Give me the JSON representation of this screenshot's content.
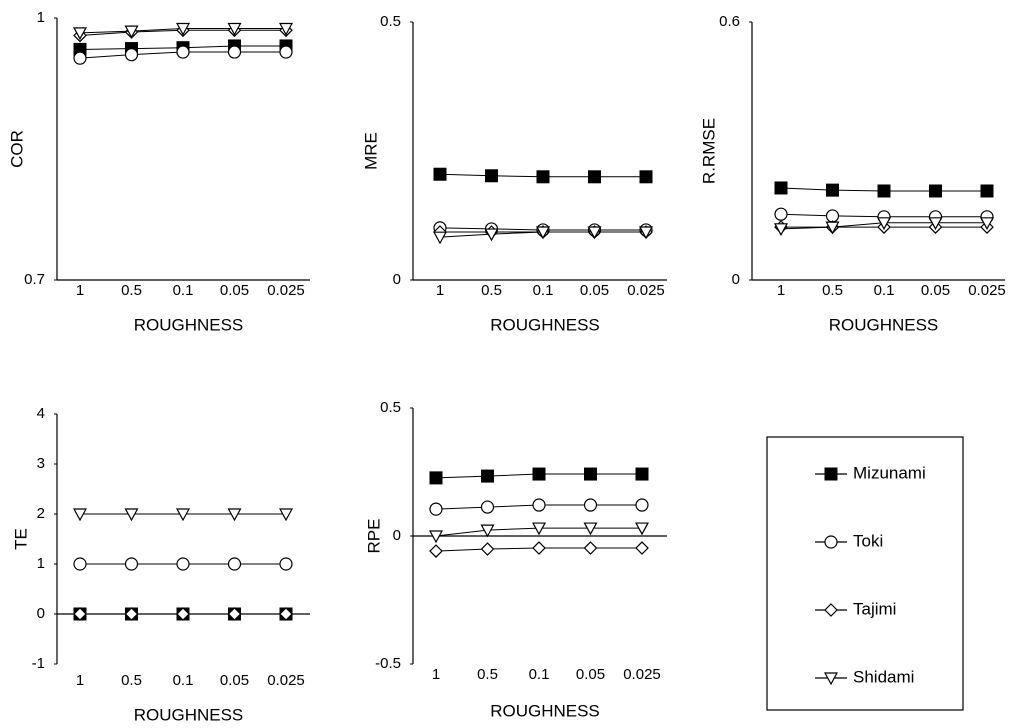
{
  "chart_data": [
    {
      "type": "line",
      "ylabel": "COR",
      "xlabel": "ROUGHNESS",
      "categories": [
        "1",
        "0.5",
        "0.1",
        "0.05",
        "0.025"
      ],
      "ylim": [
        0.7,
        1
      ],
      "yticks": [
        0.7,
        1
      ],
      "series": [
        {
          "name": "Mizunami",
          "color": "#000000",
          "marker": "square-filled",
          "values": [
            0.964,
            0.965,
            0.966,
            0.968,
            0.968
          ]
        },
        {
          "name": "Toki",
          "color": "#000000",
          "marker": "circle",
          "values": [
            0.954,
            0.958,
            0.961,
            0.961,
            0.961
          ]
        },
        {
          "name": "Tajimi",
          "color": "#000000",
          "marker": "diamond",
          "values": [
            0.98,
            0.984,
            0.986,
            0.986,
            0.986
          ]
        },
        {
          "name": "Shidami",
          "color": "#000000",
          "marker": "triangle-down",
          "values": [
            0.983,
            0.985,
            0.988,
            0.988,
            0.988
          ]
        }
      ]
    },
    {
      "type": "line",
      "ylabel": "MRE",
      "xlabel": "ROUGHNESS",
      "categories": [
        "1",
        "0.5",
        "0.1",
        "0.05",
        "0.025"
      ],
      "ylim": [
        0,
        0.5
      ],
      "yticks": [
        0,
        0.5
      ],
      "series": [
        {
          "color": "#000000",
          "marker": "square-filled",
          "values": [
            0.205,
            0.202,
            0.2,
            0.2,
            0.2
          ]
        },
        {
          "color": "#000000",
          "marker": "circle",
          "values": [
            0.101,
            0.099,
            0.097,
            0.097,
            0.097
          ]
        },
        {
          "color": "#000000",
          "marker": "diamond",
          "values": [
            0.093,
            0.093,
            0.093,
            0.093,
            0.093
          ]
        },
        {
          "color": "#000000",
          "marker": "triangle-down",
          "values": [
            0.083,
            0.089,
            0.093,
            0.093,
            0.093
          ]
        }
      ]
    },
    {
      "type": "line",
      "ylabel": "R.RMSE",
      "xlabel": "ROUGHNESS",
      "categories": [
        "1",
        "0.5",
        "0.1",
        "0.05",
        "0.025"
      ],
      "ylim": [
        0,
        0.6
      ],
      "yticks": [
        0,
        0.6
      ],
      "series": [
        {
          "color": "#000000",
          "marker": "square-filled",
          "values": [
            0.214,
            0.209,
            0.207,
            0.207,
            0.207
          ]
        },
        {
          "color": "#000000",
          "marker": "circle",
          "values": [
            0.153,
            0.149,
            0.147,
            0.147,
            0.147
          ]
        },
        {
          "color": "#000000",
          "marker": "diamond",
          "values": [
            0.123,
            0.123,
            0.123,
            0.123,
            0.123
          ]
        },
        {
          "color": "#000000",
          "marker": "triangle-down",
          "values": [
            0.119,
            0.123,
            0.133,
            0.133,
            0.133
          ]
        }
      ]
    },
    {
      "type": "line",
      "ylabel": "TE",
      "xlabel": "ROUGHNESS",
      "zero_line": true,
      "categories": [
        "1",
        "0.5",
        "0.1",
        "0.05",
        "0.025"
      ],
      "ylim": [
        -1,
        4
      ],
      "yticks": [
        -1,
        0,
        1,
        2,
        3,
        4
      ],
      "series": [
        {
          "color": "#000000",
          "marker": "square-filled",
          "values": [
            0,
            0,
            0,
            0,
            0
          ]
        },
        {
          "color": "#000000",
          "marker": "circle",
          "values": [
            1,
            1,
            1,
            1,
            1
          ]
        },
        {
          "color": "#000000",
          "marker": "diamond",
          "values": [
            0,
            0,
            0,
            0,
            0
          ]
        },
        {
          "color": "#000000",
          "marker": "triangle-down",
          "values": [
            2,
            2,
            2,
            2,
            2
          ]
        }
      ]
    },
    {
      "type": "line",
      "ylabel": "RPE",
      "xlabel": "ROUGHNESS",
      "zero_line": true,
      "categories": [
        "1",
        "0.5",
        "0.1",
        "0.05",
        "0.025"
      ],
      "ylim": [
        -0.5,
        0.5
      ],
      "yticks": [
        -0.5,
        0,
        0.5
      ],
      "series": [
        {
          "color": "#000000",
          "marker": "square-filled",
          "values": [
            0.227,
            0.234,
            0.242,
            0.242,
            0.242
          ]
        },
        {
          "color": "#000000",
          "marker": "circle",
          "values": [
            0.105,
            0.113,
            0.121,
            0.121,
            0.121
          ]
        },
        {
          "color": "#000000",
          "marker": "diamond",
          "values": [
            -0.059,
            -0.051,
            -0.047,
            -0.047,
            -0.047
          ]
        },
        {
          "color": "#000000",
          "marker": "triangle-down",
          "values": [
            0,
            0.023,
            0.031,
            0.031,
            0.031
          ]
        }
      ]
    }
  ]
}
